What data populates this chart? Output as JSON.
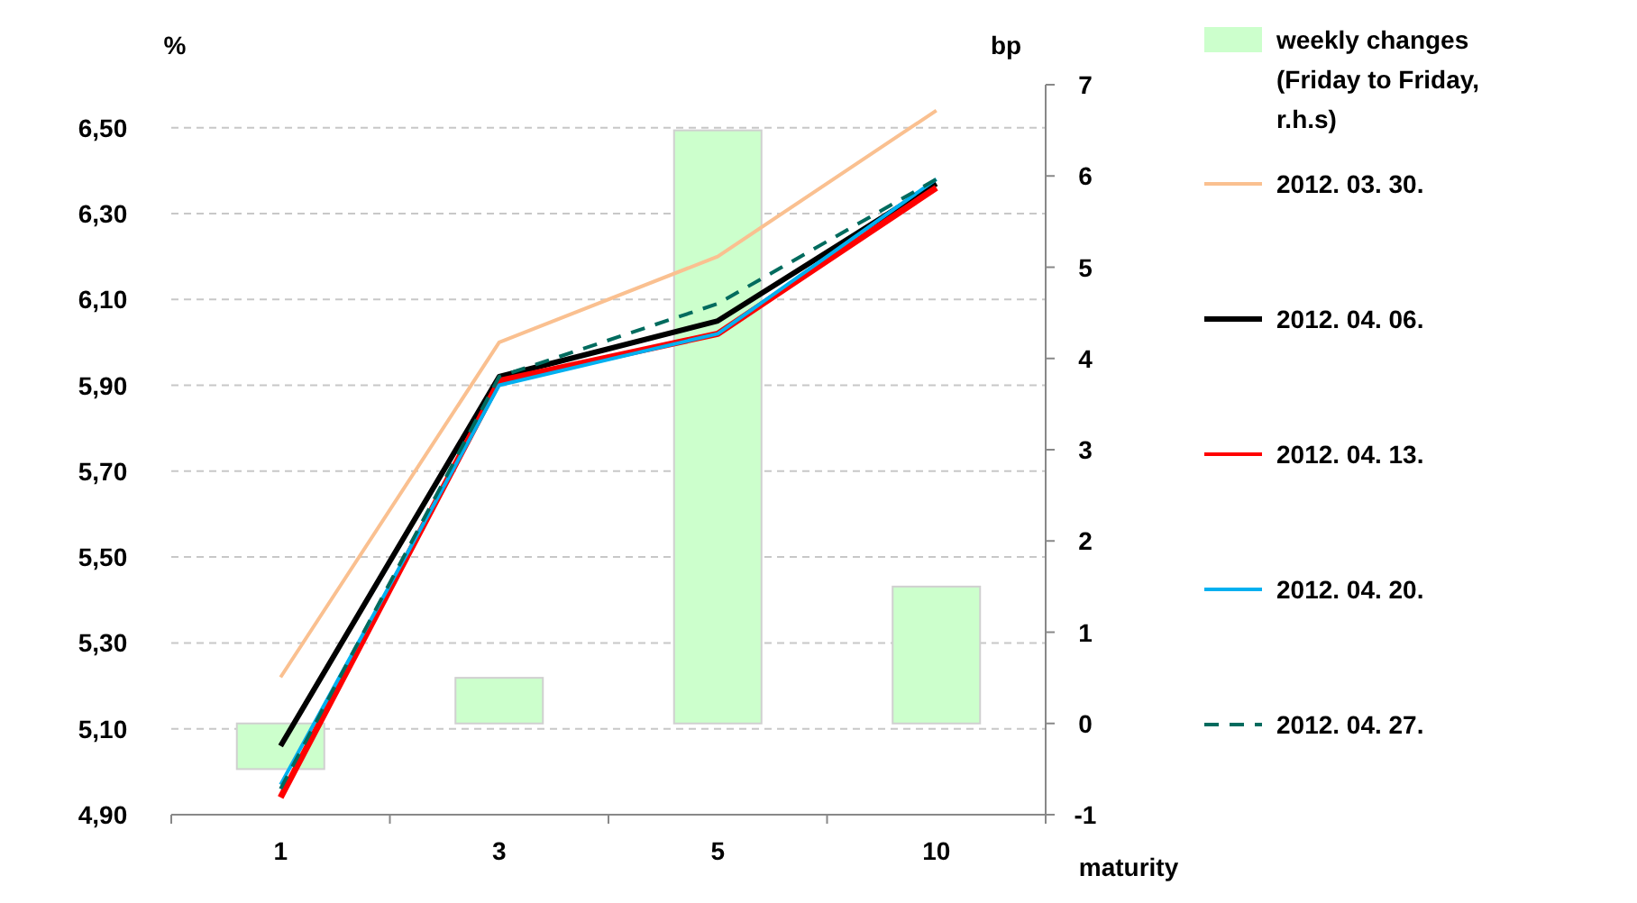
{
  "chart_data": {
    "type": "line",
    "ylabel": "%",
    "y2label": "bp",
    "xlabel": "maturity",
    "categories": [
      "1",
      "3",
      "5",
      "10"
    ],
    "ylim": [
      4.9,
      6.6
    ],
    "yticks": [
      {
        "value": 4.9,
        "label": "4,90"
      },
      {
        "value": 5.1,
        "label": "5,10"
      },
      {
        "value": 5.3,
        "label": "5,30"
      },
      {
        "value": 5.5,
        "label": "5,50"
      },
      {
        "value": 5.7,
        "label": "5,70"
      },
      {
        "value": 5.9,
        "label": "5,90"
      },
      {
        "value": 6.1,
        "label": "6,10"
      },
      {
        "value": 6.3,
        "label": "6,30"
      },
      {
        "value": 6.5,
        "label": "6,50"
      }
    ],
    "y2lim": [
      -1,
      7
    ],
    "y2ticks": [
      -1,
      0,
      1,
      2,
      3,
      4,
      5,
      6,
      7
    ],
    "grid": "y",
    "legend": "right",
    "series": [
      {
        "name": "weekly changes (Friday to Friday, r.h.s)",
        "type": "bar",
        "axis": "y2",
        "color": "#ccffcc",
        "values": [
          -0.5,
          0.5,
          6.5,
          1.5
        ]
      },
      {
        "name": "2012. 03. 30.",
        "color": "#fac090",
        "values": [
          5.22,
          6.0,
          6.2,
          6.54
        ]
      },
      {
        "name": "2012. 04. 06.",
        "color": "#000000",
        "values": [
          5.06,
          5.92,
          6.05,
          6.37
        ]
      },
      {
        "name": "2012. 04. 13.",
        "color": "#ff0000",
        "values": [
          4.94,
          5.91,
          6.02,
          6.36
        ]
      },
      {
        "name": "2012. 04. 20.",
        "color": "#00b0f0",
        "values": [
          4.97,
          5.9,
          6.02,
          6.38
        ]
      },
      {
        "name": "2012. 04. 27.",
        "color": "#006b5e",
        "line_style": "dashed",
        "values": [
          4.96,
          5.92,
          6.09,
          6.38
        ]
      }
    ]
  }
}
